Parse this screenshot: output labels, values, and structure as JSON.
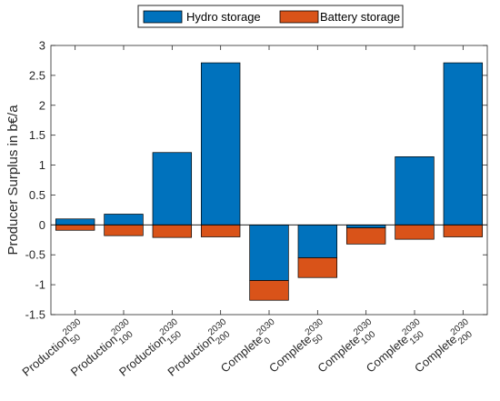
{
  "chart_data": {
    "type": "bar",
    "stacked": true,
    "ylabel": "Producer Surplus in b€/a",
    "ylim": [
      -1.5,
      3
    ],
    "yticks": [
      -1.5,
      -1,
      -0.5,
      0,
      0.5,
      1,
      1.5,
      2,
      2.5,
      3
    ],
    "ytick_labels": [
      "-1.5",
      "-1",
      "-0.5",
      "0",
      "0.5",
      "1",
      "1.5",
      "2",
      "2.5",
      "3"
    ],
    "categories": [
      {
        "base": "Production",
        "sup": "2030",
        "sub": "50"
      },
      {
        "base": "Production",
        "sup": "2030",
        "sub": "100"
      },
      {
        "base": "Production",
        "sup": "2030",
        "sub": "150"
      },
      {
        "base": "Production",
        "sup": "2030",
        "sub": "200"
      },
      {
        "base": "Complete",
        "sup": "2030",
        "sub": "0"
      },
      {
        "base": "Complete",
        "sup": "2030",
        "sub": "50"
      },
      {
        "base": "Complete",
        "sup": "2030",
        "sub": "100"
      },
      {
        "base": "Complete",
        "sup": "2030",
        "sub": "150"
      },
      {
        "base": "Complete",
        "sup": "2030",
        "sub": "200"
      }
    ],
    "series": [
      {
        "name": "Hydro storage",
        "color": "#0072BD",
        "values": [
          0.1,
          0.18,
          1.21,
          2.71,
          -0.93,
          -0.55,
          -0.05,
          1.14,
          2.71
        ]
      },
      {
        "name": "Battery storage",
        "color": "#D95319",
        "values": [
          -0.09,
          -0.18,
          -0.21,
          -0.2,
          -0.33,
          -0.33,
          -0.27,
          -0.24,
          -0.2
        ]
      }
    ],
    "legend_position": "top",
    "grid": false
  }
}
